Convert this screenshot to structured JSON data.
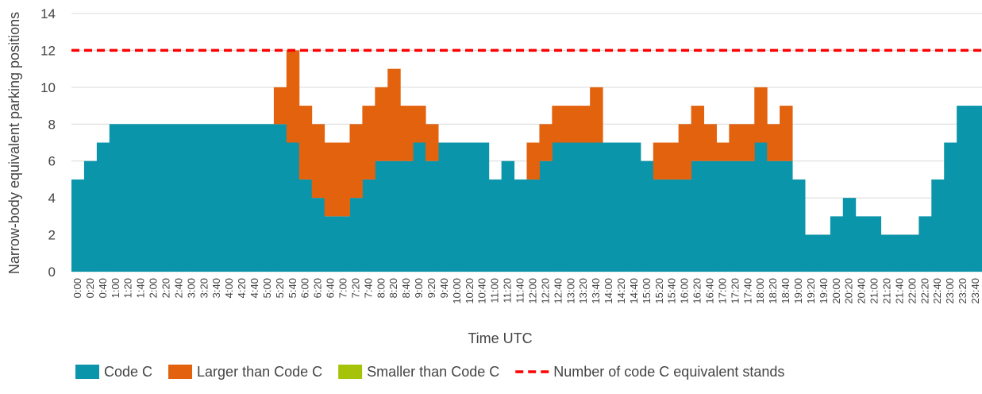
{
  "chart_data": {
    "type": "stacked_step_area",
    "y_label": "Narrow-body equivalent parking positions",
    "x_label": "Time UTC",
    "categories": [
      "0:00",
      "0:20",
      "0:40",
      "1:00",
      "1:20",
      "1:40",
      "2:00",
      "2:20",
      "2:40",
      "3:00",
      "3:20",
      "3:40",
      "4:00",
      "4:20",
      "4:40",
      "5:00",
      "5:20",
      "5:40",
      "6:00",
      "6:20",
      "6:40",
      "7:00",
      "7:20",
      "7:40",
      "8:00",
      "8:20",
      "8:40",
      "9:00",
      "9:20",
      "9:40",
      "10:00",
      "10:20",
      "10:40",
      "11:00",
      "11:20",
      "11:40",
      "12:00",
      "12:20",
      "12:40",
      "13:00",
      "13:20",
      "13:40",
      "14:00",
      "14:20",
      "14:40",
      "15:00",
      "15:20",
      "15:40",
      "16:00",
      "16:20",
      "16:40",
      "17:00",
      "17:20",
      "17:40",
      "18:00",
      "18:20",
      "18:40",
      "19:00",
      "19:20",
      "19:40",
      "20:00",
      "20:20",
      "20:40",
      "21:00",
      "21:20",
      "21:40",
      "22:00",
      "22:20",
      "22:40",
      "23:00",
      "23:20",
      "23:40"
    ],
    "series": [
      {
        "name": "Code C",
        "color": "#0a95aa",
        "values": [
          5,
          6,
          7,
          8,
          8,
          8,
          8,
          8,
          8,
          8,
          8,
          8,
          8,
          8,
          8,
          8,
          8,
          7,
          5,
          4,
          3,
          3,
          4,
          5,
          6,
          6,
          6,
          7,
          6,
          7,
          7,
          7,
          7,
          5,
          6,
          5,
          5,
          6,
          7,
          7,
          7,
          7,
          7,
          7,
          7,
          6,
          5,
          5,
          5,
          6,
          6,
          6,
          6,
          6,
          7,
          6,
          6,
          5,
          2,
          2,
          3,
          4,
          3,
          3,
          2,
          2,
          2,
          3,
          5,
          7,
          9,
          9
        ]
      },
      {
        "name": "Larger than Code C",
        "color": "#e2620e",
        "values": [
          0,
          0,
          0,
          0,
          0,
          0,
          0,
          0,
          0,
          0,
          0,
          0,
          0,
          0,
          0,
          0,
          2,
          5,
          4,
          4,
          4,
          4,
          4,
          4,
          4,
          5,
          3,
          2,
          2,
          0,
          0,
          0,
          0,
          0,
          0,
          0,
          2,
          2,
          2,
          2,
          2,
          3,
          0,
          0,
          0,
          0,
          2,
          2,
          3,
          3,
          2,
          1,
          2,
          2,
          3,
          2,
          3,
          0,
          0,
          0,
          0,
          0,
          0,
          0,
          0,
          0,
          0,
          0,
          0,
          0,
          0,
          0
        ]
      },
      {
        "name": "Smaller than Code C",
        "color": "#a6c30a",
        "values": [
          0,
          0,
          0,
          0,
          0,
          0,
          0,
          0,
          0,
          0,
          0,
          0,
          0,
          0,
          0,
          0,
          0,
          0,
          0,
          0,
          0,
          0,
          0,
          0,
          0,
          0,
          0,
          0,
          0,
          0,
          0,
          0,
          0,
          0,
          0,
          0,
          0,
          0,
          0,
          0,
          0,
          0,
          0,
          0,
          0,
          0,
          0,
          0,
          0,
          0,
          0,
          0,
          0,
          0,
          0,
          0,
          0,
          0,
          0,
          0,
          0,
          0,
          0,
          0,
          0,
          0,
          0,
          0,
          0,
          0,
          0,
          0
        ]
      }
    ],
    "reference": {
      "name": "Number of code C equivalent stands",
      "value": 12,
      "color": "#ff0000"
    },
    "ylim": [
      0,
      14
    ],
    "yticks": [
      0,
      2,
      4,
      6,
      8,
      10,
      12,
      14
    ],
    "grid": true,
    "legend": "bottom"
  }
}
